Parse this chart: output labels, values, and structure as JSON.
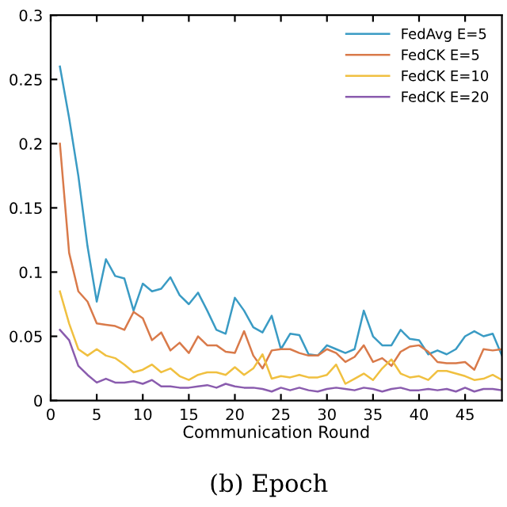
{
  "chart_data": {
    "type": "line",
    "xlabel": "Communication Round",
    "annotations": [
      "(b) Epoch"
    ],
    "x": [
      1,
      2,
      3,
      4,
      5,
      6,
      7,
      8,
      9,
      10,
      11,
      12,
      13,
      14,
      15,
      16,
      17,
      18,
      19,
      20,
      21,
      22,
      23,
      24,
      25,
      26,
      27,
      28,
      29,
      30,
      31,
      32,
      33,
      34,
      35,
      36,
      37,
      38,
      39,
      40,
      41,
      42,
      43,
      44,
      45,
      46,
      47,
      48,
      49
    ],
    "series": [
      {
        "name": "FedAvg E=5",
        "color": "#3a9bc4",
        "values": [
          0.26,
          0.22,
          0.175,
          0.12,
          0.077,
          0.11,
          0.097,
          0.095,
          0.07,
          0.091,
          0.085,
          0.087,
          0.096,
          0.082,
          0.075,
          0.084,
          0.07,
          0.055,
          0.052,
          0.08,
          0.07,
          0.057,
          0.053,
          0.066,
          0.04,
          0.052,
          0.051,
          0.036,
          0.035,
          0.043,
          0.04,
          0.037,
          0.04,
          0.07,
          0.05,
          0.043,
          0.043,
          0.055,
          0.048,
          0.047,
          0.036,
          0.039,
          0.036,
          0.04,
          0.05,
          0.054,
          0.05,
          0.052,
          0.035
        ]
      },
      {
        "name": "FedCK E=5",
        "color": "#d97a4a",
        "values": [
          0.2,
          0.115,
          0.085,
          0.077,
          0.06,
          0.059,
          0.058,
          0.055,
          0.069,
          0.064,
          0.047,
          0.053,
          0.039,
          0.045,
          0.037,
          0.05,
          0.043,
          0.043,
          0.038,
          0.037,
          0.054,
          0.035,
          0.025,
          0.039,
          0.04,
          0.04,
          0.037,
          0.035,
          0.035,
          0.04,
          0.037,
          0.03,
          0.034,
          0.043,
          0.03,
          0.033,
          0.027,
          0.038,
          0.042,
          0.043,
          0.038,
          0.03,
          0.029,
          0.029,
          0.03,
          0.024,
          0.04,
          0.039,
          0.04
        ]
      },
      {
        "name": "FedCK E=10",
        "color": "#f0c040",
        "values": [
          0.085,
          0.06,
          0.04,
          0.035,
          0.04,
          0.035,
          0.033,
          0.028,
          0.022,
          0.024,
          0.028,
          0.022,
          0.025,
          0.019,
          0.016,
          0.02,
          0.022,
          0.022,
          0.02,
          0.026,
          0.02,
          0.025,
          0.036,
          0.017,
          0.019,
          0.018,
          0.02,
          0.018,
          0.018,
          0.02,
          0.028,
          0.013,
          0.017,
          0.021,
          0.016,
          0.025,
          0.032,
          0.021,
          0.018,
          0.019,
          0.016,
          0.023,
          0.023,
          0.021,
          0.019,
          0.016,
          0.017,
          0.02,
          0.016
        ]
      },
      {
        "name": "FedCK E=20",
        "color": "#8a5cae",
        "values": [
          0.055,
          0.047,
          0.027,
          0.02,
          0.014,
          0.017,
          0.014,
          0.014,
          0.015,
          0.013,
          0.016,
          0.011,
          0.011,
          0.01,
          0.01,
          0.011,
          0.012,
          0.01,
          0.013,
          0.011,
          0.01,
          0.01,
          0.009,
          0.007,
          0.01,
          0.008,
          0.01,
          0.008,
          0.007,
          0.009,
          0.01,
          0.009,
          0.008,
          0.01,
          0.009,
          0.007,
          0.009,
          0.01,
          0.008,
          0.008,
          0.009,
          0.008,
          0.009,
          0.007,
          0.01,
          0.007,
          0.009,
          0.009,
          0.008
        ]
      }
    ],
    "xlim": [
      0,
      49
    ],
    "ylim": [
      0,
      0.3
    ],
    "xticks": [
      0,
      5,
      10,
      15,
      20,
      25,
      30,
      35,
      40,
      45
    ],
    "yticks": [
      0,
      0.05,
      0.1,
      0.15,
      0.2,
      0.25,
      0.3
    ],
    "grid": false,
    "legend": "top right"
  }
}
